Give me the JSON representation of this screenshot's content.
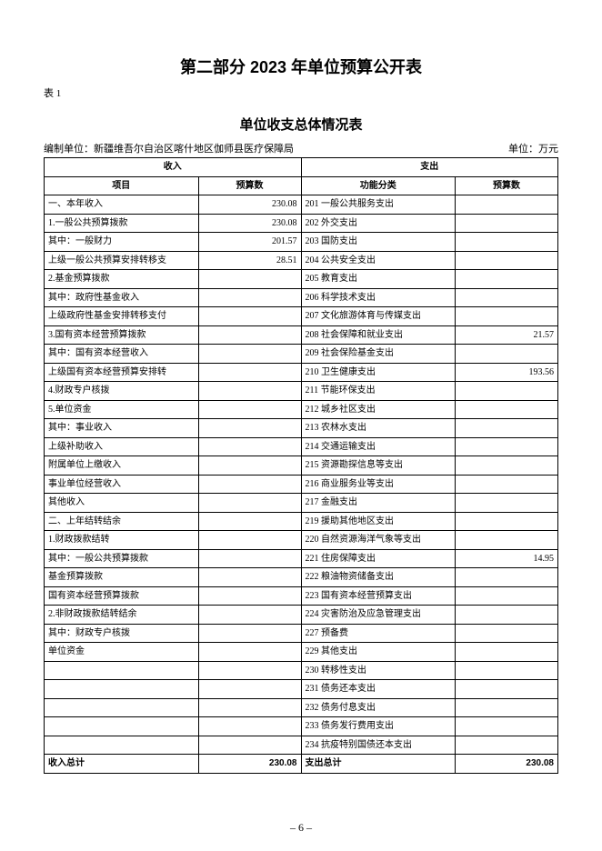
{
  "page": {
    "section_title": "第二部分 2023 年单位预算公开表",
    "table_label": "表 1",
    "subtitle": "单位收支总体情况表",
    "org_label": "编制单位：新疆维吾尔自治区喀什地区伽师县医疗保障局",
    "unit_label": "单位：万元",
    "page_number": "– 6 –"
  },
  "headers": {
    "income_group": "收入",
    "expense_group": "支出",
    "income_item": "项目",
    "income_budget": "预算数",
    "expense_cat": "功能分类",
    "expense_budget": "预算数"
  },
  "rows": [
    {
      "i_item": "一、本年收入",
      "i_val": "230.08",
      "e_cat": "201 一般公共服务支出",
      "e_val": ""
    },
    {
      "i_item": "1.一般公共预算拨款",
      "i_val": "230.08",
      "e_cat": "202 外交支出",
      "e_val": ""
    },
    {
      "i_item": "其中：一般财力",
      "i_val": "201.57",
      "e_cat": "203 国防支出",
      "e_val": ""
    },
    {
      "i_item": "上级一般公共预算安排转移支",
      "i_val": "28.51",
      "e_cat": "204 公共安全支出",
      "e_val": ""
    },
    {
      "i_item": "2.基金预算拨款",
      "i_val": "",
      "e_cat": "205 教育支出",
      "e_val": ""
    },
    {
      "i_item": "其中：政府性基金收入",
      "i_val": "",
      "e_cat": "206 科学技术支出",
      "e_val": ""
    },
    {
      "i_item": "上级政府性基金安排转移支付",
      "i_val": "",
      "e_cat": "207 文化旅游体育与传媒支出",
      "e_val": ""
    },
    {
      "i_item": "3.国有资本经营预算拨款",
      "i_val": "",
      "e_cat": "208 社会保障和就业支出",
      "e_val": "21.57"
    },
    {
      "i_item": "其中：国有资本经营收入",
      "i_val": "",
      "e_cat": "209 社会保险基金支出",
      "e_val": ""
    },
    {
      "i_item": "上级国有资本经营预算安排转",
      "i_val": "",
      "e_cat": "210 卫生健康支出",
      "e_val": "193.56"
    },
    {
      "i_item": "4.财政专户核拨",
      "i_val": "",
      "e_cat": "211 节能环保支出",
      "e_val": ""
    },
    {
      "i_item": "5.单位资金",
      "i_val": "",
      "e_cat": "212 城乡社区支出",
      "e_val": ""
    },
    {
      "i_item": "其中：事业收入",
      "i_val": "",
      "e_cat": "213 农林水支出",
      "e_val": ""
    },
    {
      "i_item": "上级补助收入",
      "i_val": "",
      "e_cat": "214 交通运输支出",
      "e_val": ""
    },
    {
      "i_item": "附属单位上缴收入",
      "i_val": "",
      "e_cat": "215 资源勘探信息等支出",
      "e_val": ""
    },
    {
      "i_item": "事业单位经营收入",
      "i_val": "",
      "e_cat": "216 商业服务业等支出",
      "e_val": ""
    },
    {
      "i_item": "其他收入",
      "i_val": "",
      "e_cat": "217 金融支出",
      "e_val": ""
    },
    {
      "i_item": "二、上年结转结余",
      "i_val": "",
      "e_cat": "219 援助其他地区支出",
      "e_val": ""
    },
    {
      "i_item": "1.财政拨款结转",
      "i_val": "",
      "e_cat": "220 自然资源海洋气象等支出",
      "e_val": ""
    },
    {
      "i_item": "其中：一般公共预算拨款",
      "i_val": "",
      "e_cat": "221 住房保障支出",
      "e_val": "14.95"
    },
    {
      "i_item": "基金预算拨款",
      "i_val": "",
      "e_cat": "222 粮油物资储备支出",
      "e_val": ""
    },
    {
      "i_item": "国有资本经营预算拨款",
      "i_val": "",
      "e_cat": "223 国有资本经营预算支出",
      "e_val": ""
    },
    {
      "i_item": "2.非财政拨款结转结余",
      "i_val": "",
      "e_cat": "224 灾害防治及应急管理支出",
      "e_val": ""
    },
    {
      "i_item": "其中：财政专户核拨",
      "i_val": "",
      "e_cat": "227 预备费",
      "e_val": ""
    },
    {
      "i_item": "单位资金",
      "i_val": "",
      "e_cat": "229 其他支出",
      "e_val": ""
    },
    {
      "i_item": "",
      "i_val": "",
      "e_cat": "230 转移性支出",
      "e_val": ""
    },
    {
      "i_item": "",
      "i_val": "",
      "e_cat": "231 债务还本支出",
      "e_val": ""
    },
    {
      "i_item": "",
      "i_val": "",
      "e_cat": "232 债务付息支出",
      "e_val": ""
    },
    {
      "i_item": "",
      "i_val": "",
      "e_cat": "233 债务发行费用支出",
      "e_val": ""
    },
    {
      "i_item": "",
      "i_val": "",
      "e_cat": "234 抗疫特别国债还本支出",
      "e_val": ""
    }
  ],
  "totals": {
    "income_label": "收入总计",
    "income_value": "230.08",
    "expense_label": "支出总计",
    "expense_value": "230.08"
  }
}
